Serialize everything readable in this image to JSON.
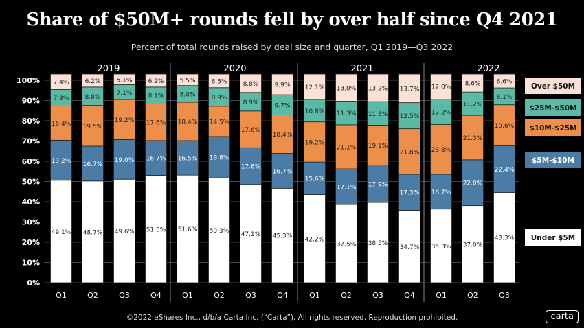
{
  "title": "Share of $50M+ rounds fell by over half since Q4 2021",
  "subtitle": "Percent of total rounds raised by deal size and quarter, Q1 2019—Q3 2022",
  "footer": "©2022 eShares Inc., d/b/a Carta Inc. (“Carta”). All rights reserved. Reproduction prohibited.",
  "logo": "carta",
  "chart_data": {
    "type": "bar",
    "stacked": true,
    "title": "Share of $50M+ rounds fell by over half since Q4 2021",
    "ylim": [
      0,
      100
    ],
    "y_ticks": [
      "0%",
      "10%",
      "20%",
      "30%",
      "40%",
      "50%",
      "60%",
      "70%",
      "80%",
      "90%",
      "100%"
    ],
    "grid": true,
    "legend_position": "right",
    "groups": [
      {
        "year": "2019",
        "quarters": [
          "Q1",
          "Q2",
          "Q3",
          "Q4"
        ]
      },
      {
        "year": "2020",
        "quarters": [
          "Q1",
          "Q2",
          "Q3",
          "Q4"
        ]
      },
      {
        "year": "2021",
        "quarters": [
          "Q1",
          "Q2",
          "Q3",
          "Q4"
        ]
      },
      {
        "year": "2022",
        "quarters": [
          "Q1",
          "Q2",
          "Q3"
        ]
      }
    ],
    "series": [
      {
        "name": "Under $5M",
        "color": "#ffffff",
        "values": [
          49.1,
          48.7,
          49.6,
          51.5,
          51.6,
          50.3,
          47.1,
          45.3,
          42.2,
          37.5,
          38.5,
          34.7,
          35.3,
          37.0,
          43.3
        ]
      },
      {
        "name": "$5M-$10M",
        "color": "#4a7ca5",
        "values": [
          19.2,
          16.7,
          19.0,
          16.7,
          16.5,
          19.8,
          17.6,
          16.7,
          15.6,
          17.1,
          17.9,
          17.3,
          16.7,
          22.0,
          22.4
        ]
      },
      {
        "name": "$10M-$25M",
        "color": "#ec8f4a",
        "values": [
          16.4,
          19.5,
          19.2,
          17.6,
          18.4,
          14.5,
          17.6,
          18.4,
          19.2,
          21.1,
          19.1,
          21.8,
          23.8,
          21.3,
          19.6
        ]
      },
      {
        "name": "$25M-$50M",
        "color": "#5bbaa6",
        "values": [
          7.9,
          8.8,
          7.1,
          8.1,
          8.0,
          8.9,
          8.9,
          9.7,
          10.8,
          11.3,
          11.3,
          12.5,
          12.2,
          11.2,
          8.1
        ]
      },
      {
        "name": "Over $50M",
        "color": "#fbe1d6",
        "values": [
          7.4,
          6.2,
          5.1,
          6.2,
          5.5,
          6.5,
          8.8,
          9.9,
          12.1,
          13.0,
          13.2,
          13.7,
          12.0,
          8.6,
          6.6
        ]
      }
    ]
  }
}
